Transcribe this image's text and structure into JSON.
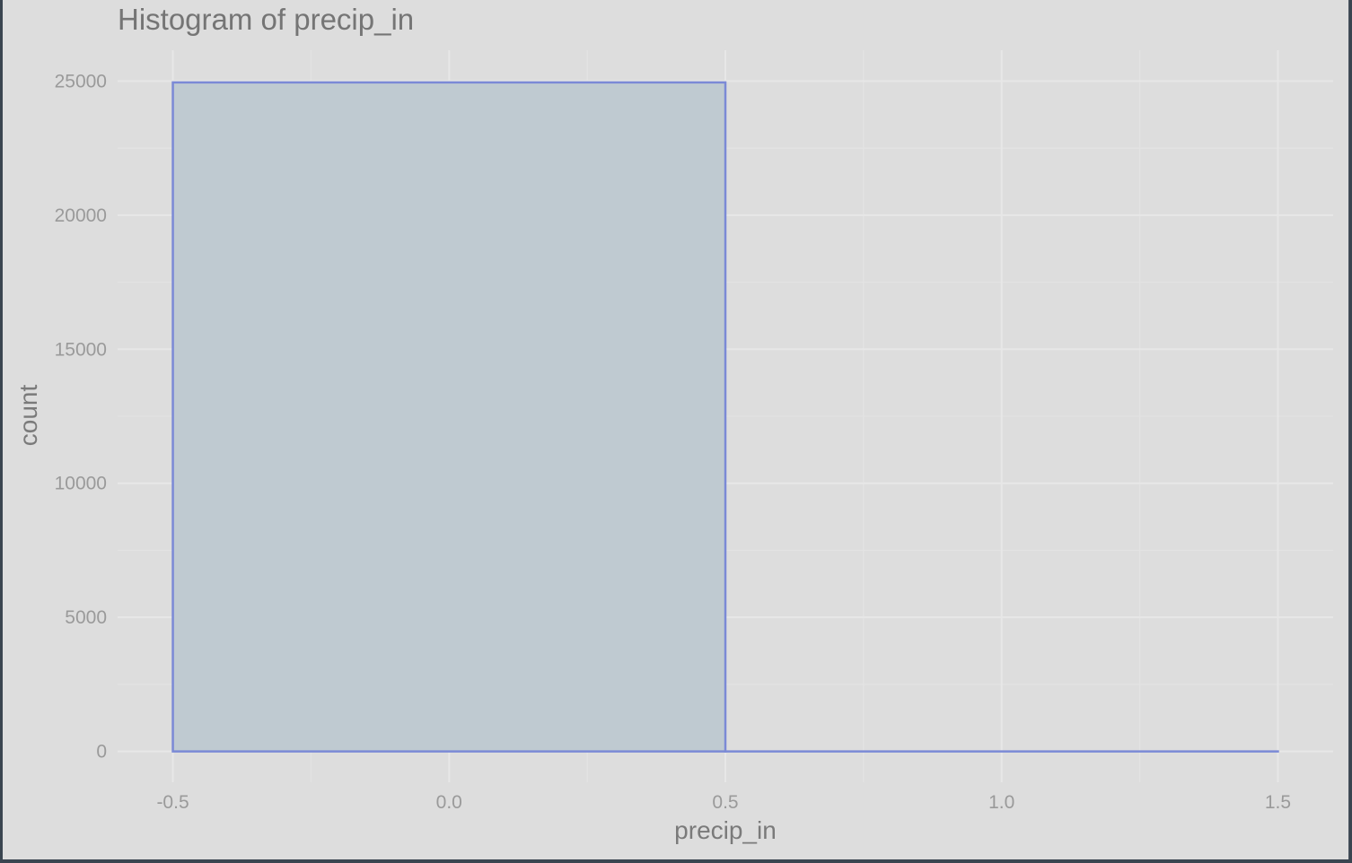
{
  "chart_data": {
    "type": "bar",
    "title": "Histogram of precip_in",
    "xlabel": "precip_in",
    "ylabel": "count",
    "xlim": [
      -0.6,
      1.6
    ],
    "ylim": [
      -1150,
      26150
    ],
    "x_ticks": [
      -0.5,
      0.0,
      0.5,
      1.0,
      1.5
    ],
    "x_tick_labels": [
      "-0.5",
      "0.0",
      "0.5",
      "1.0",
      "1.5"
    ],
    "y_ticks": [
      0,
      5000,
      10000,
      15000,
      20000,
      25000
    ],
    "y_tick_labels": [
      "0",
      "5000",
      "10000",
      "15000",
      "20000",
      "25000"
    ],
    "bins": [
      {
        "xmin": -0.5,
        "xmax": 0.5,
        "count": 24950
      },
      {
        "xmin": 0.5,
        "xmax": 1.5,
        "count": 0
      }
    ],
    "grid": true,
    "bar_fill": "#bfcad1",
    "bar_outline": "#7b8ad6",
    "background": "#dddddd"
  }
}
